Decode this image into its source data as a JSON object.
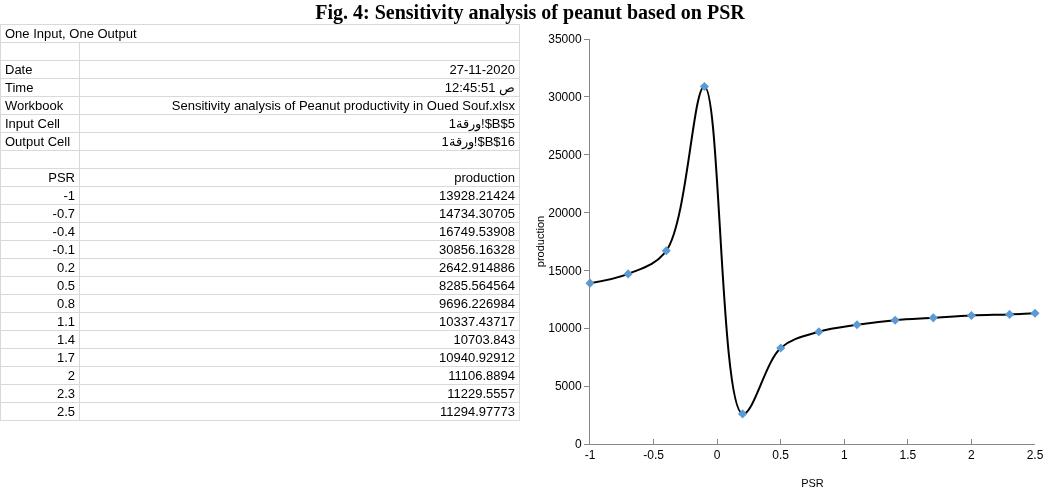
{
  "chart_data": [
    {
      "type": "other",
      "annotations": [
        "One Input, One Output",
        "Date",
        "27-11-2020",
        "Time",
        "12:45:51 ص",
        "Workbook",
        "Sensitivity analysis of Peanut productivity in Oued Souf.xlsx",
        "Input Cell",
        "ورقة1!$B$5",
        "Output Cell",
        "ورقة1!$B$16",
        "PSR",
        "production",
        "-1",
        "13928.21424",
        "-0.7",
        "14734.30705",
        "-0.4",
        "16749.53908",
        "-0.1",
        "30856.16328",
        "0.2",
        "2642.914886",
        "0.5",
        "8285.564564",
        "0.8",
        "9696.226984",
        "1.1",
        "10337.43717",
        "1.4",
        "10703.843",
        "1.7",
        "10940.92912",
        "2",
        "11106.8894",
        "2.3",
        "11229.5557",
        "2.5",
        "11294.97773"
      ]
    },
    {
      "type": "line",
      "title": "Fig. 4: Sensitivity analysis of peanut based on PSR",
      "xlabel": "PSR",
      "ylabel": "production",
      "x": [
        -1,
        -0.7,
        -0.4,
        -0.1,
        0.2,
        0.5,
        0.8,
        1.1,
        1.4,
        1.7,
        2,
        2.3,
        2.5
      ],
      "series": [
        {
          "type": "line",
          "color": "#000000",
          "marker": "none",
          "values": [
            13900,
            14700,
            16700,
            30900,
            2600,
            8300,
            9700,
            10300,
            10700,
            10900,
            11100,
            11200,
            11300
          ]
        },
        {
          "type": "scatter",
          "color": "#5b9bd5",
          "marker": "diamond",
          "values": [
            13900,
            14700,
            16700,
            30900,
            2600,
            8300,
            9700,
            10300,
            10700,
            10900,
            11100,
            11200,
            11300
          ]
        }
      ],
      "line_style": "solid",
      "xlim": [
        -1,
        2.5
      ],
      "xticks": [
        -1,
        -0.5,
        0,
        0.5,
        1,
        1.5,
        2,
        2.5
      ],
      "ylim": [
        0,
        35000
      ],
      "yticks": [
        0,
        5000,
        10000,
        15000,
        20000,
        25000,
        30000,
        35000
      ]
    }
  ]
}
